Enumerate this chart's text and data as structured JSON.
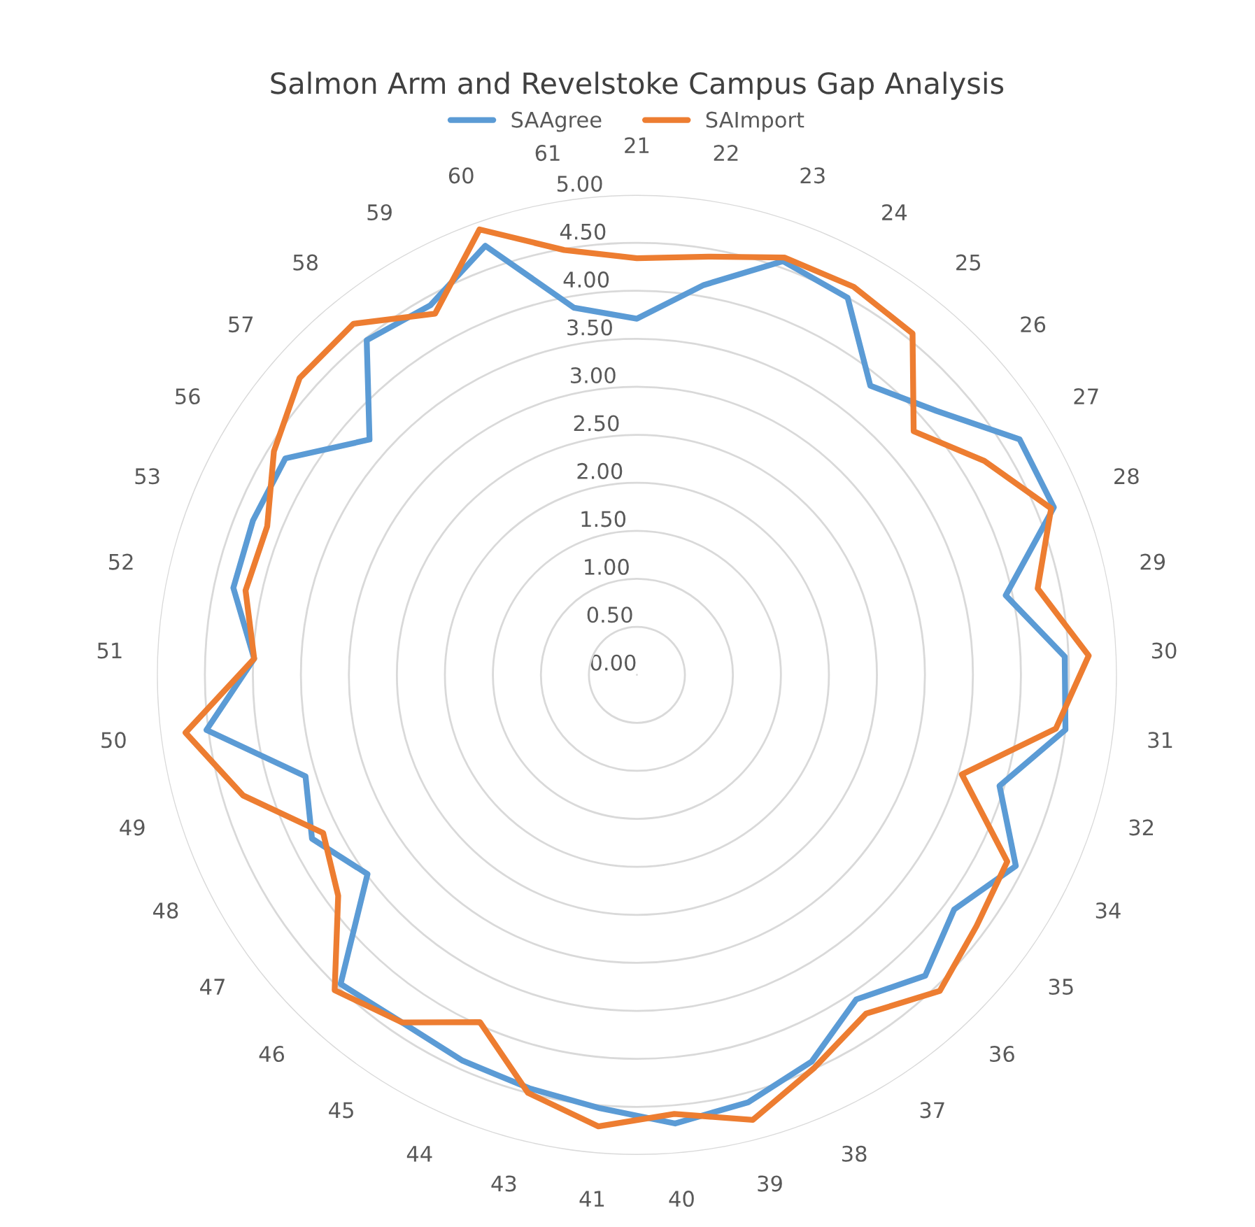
{
  "chart_data": {
    "type": "radar",
    "title": "Salmon Arm and Revelstoke Campus Gap Analysis",
    "categories": [
      "21",
      "22",
      "23",
      "24",
      "25",
      "26",
      "27",
      "28",
      "29",
      "30",
      "31",
      "32",
      "34",
      "35",
      "36",
      "37",
      "38",
      "39",
      "40",
      "41",
      "43",
      "44",
      "45",
      "46",
      "47",
      "48",
      "49",
      "50",
      "51",
      "52",
      "53",
      "56",
      "57",
      "58",
      "59",
      "60",
      "61"
    ],
    "series": [
      {
        "name": "SAAgree",
        "color": "#5b9bd5",
        "values": [
          3.71,
          4.12,
          4.57,
          4.5,
          3.87,
          4.16,
          4.68,
          4.68,
          3.93,
          4.46,
          4.5,
          3.95,
          4.42,
          4.11,
          4.34,
          4.08,
          4.42,
          4.6,
          4.69,
          4.53,
          4.45,
          4.41,
          4.37,
          4.46,
          3.49,
          3.79,
          3.61,
          4.52,
          3.99,
          4.3,
          4.31,
          4.3,
          3.71,
          4.48,
          4.41,
          4.74,
          3.88
        ]
      },
      {
        "name": "SAImport",
        "color": "#ed7d31",
        "values": [
          4.34,
          4.42,
          4.61,
          4.63,
          4.57,
          3.84,
          4.25,
          4.65,
          4.27,
          4.71,
          4.4,
          3.54,
          4.32,
          4.4,
          4.56,
          4.26,
          4.49,
          4.79,
          4.59,
          4.72,
          4.5,
          3.97,
          4.37,
          4.55,
          3.87,
          3.66,
          4.29,
          4.74,
          3.99,
          4.17,
          4.15,
          4.44,
          4.68,
          4.7,
          4.31,
          4.92,
          4.49
        ]
      }
    ],
    "ylim": [
      0,
      5
    ],
    "yticks": [
      {
        "value": 0,
        "label": "0.00"
      },
      {
        "value": 0.5,
        "label": "0.50"
      },
      {
        "value": 1,
        "label": "1.00"
      },
      {
        "value": 1.5,
        "label": "1.50"
      },
      {
        "value": 2,
        "label": "2.00"
      },
      {
        "value": 2.5,
        "label": "2.50"
      },
      {
        "value": 3,
        "label": "3.00"
      },
      {
        "value": 3.5,
        "label": "3.50"
      },
      {
        "value": 4,
        "label": "4.00"
      },
      {
        "value": 4.5,
        "label": "4.50"
      },
      {
        "value": 5,
        "label": "5.00"
      }
    ],
    "grid": "y",
    "legend": "top",
    "marker": "none",
    "line_style": "solid"
  }
}
